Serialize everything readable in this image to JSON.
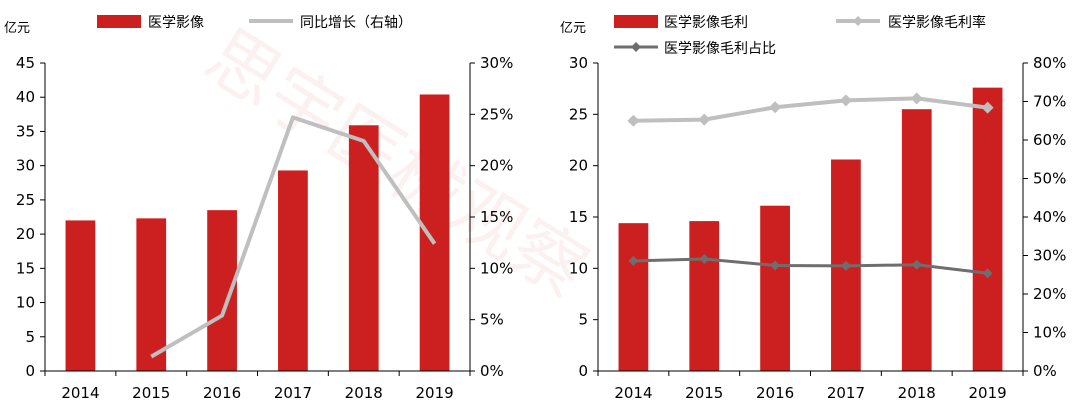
{
  "chart_data": [
    {
      "type": "bar",
      "unit_label": "亿元",
      "categories": [
        "2014",
        "2015",
        "2016",
        "2017",
        "2018",
        "2019"
      ],
      "series": [
        {
          "name": "医学影像",
          "type": "bar",
          "axis": "left",
          "values": [
            22.0,
            22.3,
            23.5,
            29.3,
            35.9,
            40.4
          ],
          "color": "#CC1F1F"
        },
        {
          "name": "同比增长（右轴）",
          "type": "line",
          "axis": "right",
          "values": [
            null,
            1.4,
            5.4,
            24.7,
            22.4,
            12.4
          ],
          "color": "#BFBFBF"
        }
      ],
      "ylim_left": [
        0,
        45
      ],
      "yticks_left": [
        "0",
        "5",
        "10",
        "15",
        "20",
        "25",
        "30",
        "35",
        "40",
        "45"
      ],
      "ylim_right": [
        0,
        30
      ],
      "yticks_right": [
        "0%",
        "5%",
        "10%",
        "15%",
        "20%",
        "25%",
        "30%"
      ],
      "legend_position": "top",
      "grid": false
    },
    {
      "type": "bar",
      "unit_label": "亿元",
      "categories": [
        "2014",
        "2015",
        "2016",
        "2017",
        "2018",
        "2019"
      ],
      "series": [
        {
          "name": "医学影像毛利",
          "type": "bar",
          "axis": "left",
          "values": [
            14.4,
            14.6,
            16.1,
            20.6,
            25.5,
            27.6
          ],
          "color": "#CC1F1F"
        },
        {
          "name": "医学影像毛利率",
          "type": "line",
          "axis": "right",
          "values": [
            65.0,
            65.3,
            68.5,
            70.3,
            70.8,
            68.4
          ],
          "color": "#BFBFBF"
        },
        {
          "name": "医学影像毛利占比",
          "type": "line",
          "axis": "right",
          "values": [
            28.6,
            29.1,
            27.4,
            27.3,
            27.6,
            25.4
          ],
          "color": "#6E6E6E"
        }
      ],
      "ylim_left": [
        0,
        30
      ],
      "yticks_left": [
        "0",
        "5",
        "10",
        "15",
        "20",
        "25",
        "30"
      ],
      "ylim_right": [
        0,
        80
      ],
      "yticks_right": [
        "0%",
        "10%",
        "20%",
        "30%",
        "40%",
        "50%",
        "60%",
        "70%",
        "80%"
      ],
      "legend_position": "top",
      "grid": false
    }
  ],
  "watermark": "思宇医械观察"
}
